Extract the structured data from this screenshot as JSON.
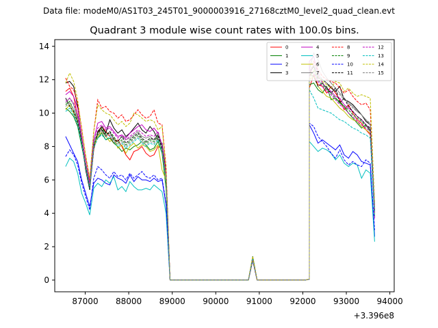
{
  "chart_data": {
    "type": "line",
    "suptitle": "Data file: modeM0/AS1T03_245T01_9000003916_27168cztM0_level2_quad_clean.evt",
    "title": "Quadrant 3 module wise count rates with 100.0s bins.",
    "xlabel": "",
    "ylabel": "",
    "x_offset_label": "+3.396e8",
    "xlim": [
      86300,
      94100
    ],
    "ylim": [
      -0.7,
      14.4
    ],
    "x_ticks": [
      87000,
      88000,
      89000,
      90000,
      91000,
      92000,
      93000,
      94000
    ],
    "x_tick_labels": [
      "87000",
      "88000",
      "89000",
      "90000",
      "91000",
      "92000",
      "93000",
      "94000"
    ],
    "y_ticks": [
      0,
      2,
      4,
      6,
      8,
      10,
      12,
      14
    ],
    "y_tick_labels": [
      "0",
      "2",
      "4",
      "6",
      "8",
      "10",
      "12",
      "14"
    ],
    "legend_position": "top-right",
    "segments": [
      {
        "start": 86550,
        "end": 88950
      },
      {
        "start": 88950,
        "end": 92150,
        "flat_value": 0,
        "spike_x": 90850,
        "spike_value": 1.3
      },
      {
        "start": 92150,
        "end": 93650
      }
    ],
    "series": [
      {
        "name": "0",
        "color": "#ff0000",
        "dash": "solid",
        "seg1": [
          11.3,
          11.5,
          11.0,
          9.8,
          8.2,
          6.6,
          5.5,
          7.8,
          8.8,
          9.2,
          8.9,
          8.6,
          8.2,
          8.4,
          8.0,
          7.5,
          7.2,
          7.7,
          7.8,
          8.0,
          7.6,
          7.4,
          7.5,
          8.0,
          7.9,
          6.0
        ],
        "seg3": [
          11.5,
          12.3,
          11.7,
          11.6,
          11.2,
          11.6,
          11.2,
          10.8,
          10.2,
          10.5,
          10.0,
          9.6,
          9.4,
          9.0,
          8.7,
          4.0
        ]
      },
      {
        "name": "1",
        "color": "#008000",
        "dash": "solid",
        "seg1": [
          10.3,
          10.1,
          9.8,
          9.2,
          8.0,
          6.8,
          5.7,
          8.2,
          8.5,
          8.8,
          8.4,
          8.5,
          8.2,
          8.0,
          7.7,
          7.9,
          7.8,
          8.0,
          8.1,
          8.3,
          8.1,
          7.8,
          7.9,
          8.3,
          7.6,
          5.5
        ],
        "seg3": [
          11.7,
          11.8,
          11.4,
          11.2,
          11.6,
          10.8,
          10.9,
          10.6,
          10.4,
          10.0,
          9.7,
          9.4,
          9.1,
          9.3,
          8.9,
          4.1
        ]
      },
      {
        "name": "2",
        "color": "#0000ff",
        "dash": "solid",
        "seg1": [
          8.6,
          8.1,
          7.6,
          7.1,
          6.0,
          5.2,
          4.4,
          5.8,
          6.1,
          6.0,
          5.8,
          5.7,
          6.3,
          6.1,
          6.0,
          5.8,
          6.3,
          5.9,
          6.2,
          6.0,
          6.0,
          5.9,
          6.1,
          5.9,
          6.0,
          4.5
        ],
        "seg3": [
          9.3,
          8.8,
          8.2,
          8.4,
          8.2,
          8.0,
          7.8,
          8.1,
          7.5,
          7.3,
          7.7,
          7.5,
          7.1,
          7.0,
          6.9,
          2.6
        ]
      },
      {
        "name": "3",
        "color": "#000000",
        "dash": "solid",
        "seg1": [
          11.8,
          11.9,
          11.6,
          10.4,
          8.4,
          6.6,
          5.4,
          7.9,
          8.9,
          9.2,
          8.8,
          9.6,
          9.1,
          8.8,
          9.0,
          8.6,
          8.8,
          9.1,
          9.4,
          9.0,
          8.8,
          9.2,
          8.9,
          8.4,
          8.2,
          6.5
        ],
        "seg3": [
          12.4,
          12.8,
          12.1,
          12.0,
          11.8,
          11.5,
          11.3,
          11.6,
          10.8,
          10.7,
          10.5,
          10.2,
          9.9,
          9.5,
          9.3,
          3.8
        ]
      },
      {
        "name": "4",
        "color": "#bf00bf",
        "dash": "solid",
        "seg1": [
          11.1,
          11.3,
          11.0,
          10.3,
          8.6,
          7.0,
          5.9,
          8.4,
          9.4,
          9.5,
          9.1,
          9.2,
          8.9,
          8.6,
          8.7,
          8.5,
          8.8,
          9.0,
          9.2,
          9.3,
          9.0,
          8.9,
          9.1,
          8.8,
          8.1,
          6.2
        ],
        "seg3": [
          13.1,
          13.4,
          12.3,
          11.8,
          11.5,
          11.3,
          11.0,
          10.9,
          10.5,
          10.3,
          10.1,
          9.8,
          9.6,
          9.3,
          9.0,
          3.7
        ]
      },
      {
        "name": "5",
        "color": "#00bfbf",
        "dash": "solid",
        "seg1": [
          6.8,
          7.3,
          7.1,
          6.4,
          5.2,
          4.6,
          3.9,
          5.5,
          5.8,
          5.6,
          6.0,
          5.8,
          6.2,
          5.4,
          5.6,
          5.3,
          5.9,
          5.6,
          5.4,
          5.4,
          5.5,
          5.4,
          5.7,
          5.5,
          5.3,
          4.0
        ],
        "seg3": [
          8.3,
          8.0,
          7.7,
          7.9,
          7.8,
          7.6,
          7.2,
          7.5,
          7.0,
          6.8,
          7.0,
          6.9,
          6.1,
          6.6,
          6.4,
          2.3
        ]
      },
      {
        "name": "6",
        "color": "#bfbf00",
        "dash": "solid",
        "seg1": [
          10.2,
          10.5,
          10.0,
          9.5,
          8.3,
          6.8,
          5.6,
          8.0,
          8.6,
          8.9,
          8.6,
          8.3,
          8.5,
          7.9,
          8.1,
          7.6,
          8.0,
          8.2,
          7.9,
          8.1,
          8.0,
          7.7,
          7.8,
          8.1,
          6.6,
          6.0
        ],
        "seg3": [
          12.0,
          12.2,
          11.6,
          11.3,
          11.0,
          10.9,
          10.6,
          10.3,
          10.1,
          9.8,
          9.6,
          9.5,
          9.2,
          9.0,
          8.8,
          3.9
        ]
      },
      {
        "name": "7",
        "color": "#808080",
        "dash": "solid",
        "seg1": [
          10.6,
          10.9,
          10.5,
          9.7,
          8.2,
          6.9,
          5.8,
          8.3,
          8.8,
          9.0,
          8.7,
          8.8,
          8.5,
          8.3,
          8.6,
          8.4,
          8.5,
          8.7,
          8.9,
          8.6,
          8.5,
          8.6,
          8.4,
          8.8,
          8.0,
          6.3
        ],
        "seg3": [
          12.6,
          13.6,
          13.2,
          12.5,
          12.1,
          11.8,
          11.5,
          11.2,
          10.9,
          10.6,
          10.4,
          10.1,
          9.9,
          9.6,
          9.3,
          4.2
        ]
      },
      {
        "name": "8",
        "color": "#ff0000",
        "dash": "dashed",
        "seg1": [
          12.1,
          11.6,
          11.4,
          10.6,
          9.1,
          7.4,
          6.0,
          8.9,
          10.8,
          10.3,
          10.4,
          10.1,
          10.0,
          9.7,
          9.9,
          9.5,
          9.6,
          9.9,
          10.2,
          9.9,
          9.7,
          9.8,
          10.2,
          9.4,
          9.3,
          6.8
        ],
        "seg3": [
          12.1,
          13.1,
          12.6,
          12.2,
          12.0,
          11.9,
          11.8,
          11.5,
          11.2,
          11.4,
          11.0,
          10.7,
          10.5,
          10.6,
          10.2,
          4.5
        ]
      },
      {
        "name": "9",
        "color": "#008000",
        "dash": "dashed",
        "seg1": [
          10.5,
          10.7,
          10.2,
          9.6,
          8.4,
          6.9,
          5.7,
          8.1,
          8.7,
          9.1,
          8.7,
          8.9,
          8.6,
          8.2,
          8.4,
          8.1,
          8.3,
          8.5,
          8.7,
          8.4,
          8.2,
          8.4,
          8.3,
          8.6,
          7.8,
          6.1
        ],
        "seg3": [
          12.2,
          12.5,
          12.0,
          11.7,
          11.4,
          11.2,
          10.9,
          10.7,
          10.4,
          10.2,
          9.9,
          9.7,
          9.5,
          9.2,
          9.0,
          4.0
        ]
      },
      {
        "name": "10",
        "color": "#0000ff",
        "dash": "dashed",
        "seg1": [
          7.4,
          7.8,
          7.5,
          6.9,
          5.8,
          5.0,
          4.2,
          6.1,
          6.8,
          6.6,
          6.3,
          6.1,
          6.5,
          6.2,
          6.3,
          6.0,
          6.4,
          6.1,
          6.3,
          6.5,
          6.2,
          6.1,
          6.3,
          6.0,
          6.1,
          4.6
        ],
        "seg3": [
          9.4,
          9.2,
          8.6,
          8.3,
          8.0,
          7.6,
          7.3,
          7.8,
          7.2,
          6.9,
          7.1,
          6.9,
          6.8,
          7.2,
          7.0,
          3.0
        ]
      },
      {
        "name": "11",
        "color": "#000000",
        "dash": "dashed",
        "seg1": [
          10.9,
          10.4,
          10.1,
          9.4,
          8.2,
          6.7,
          5.6,
          8.0,
          8.9,
          9.0,
          8.6,
          8.9,
          8.4,
          8.3,
          8.6,
          8.2,
          8.4,
          8.6,
          8.8,
          8.5,
          8.3,
          8.5,
          8.4,
          8.7,
          7.9,
          6.2
        ],
        "seg3": [
          12.3,
          12.2,
          11.6,
          11.8,
          11.5,
          11.2,
          11.5,
          10.6,
          10.9,
          10.4,
          10.1,
          9.8,
          9.6,
          9.3,
          9.1,
          4.1
        ]
      },
      {
        "name": "12",
        "color": "#bf00bf",
        "dash": "dashed",
        "seg1": [
          10.7,
          10.9,
          10.6,
          9.9,
          8.6,
          7.1,
          5.8,
          8.4,
          9.1,
          9.3,
          9.0,
          9.1,
          8.8,
          8.5,
          8.7,
          8.4,
          8.6,
          8.8,
          9.0,
          8.8,
          8.6,
          8.7,
          8.6,
          8.9,
          8.1,
          6.3
        ],
        "seg3": [
          12.7,
          12.4,
          11.9,
          11.6,
          11.3,
          11.1,
          10.8,
          10.5,
          10.3,
          10.0,
          9.8,
          9.5,
          9.3,
          9.1,
          8.9,
          4.0
        ]
      },
      {
        "name": "13",
        "color": "#00bfbf",
        "dash": "dashed",
        "seg1": [
          10.1,
          10.3,
          9.9,
          9.3,
          8.1,
          6.7,
          5.5,
          7.9,
          8.5,
          8.7,
          8.4,
          8.6,
          8.3,
          8.0,
          8.2,
          7.9,
          8.1,
          8.3,
          8.5,
          8.2,
          8.0,
          8.2,
          8.1,
          8.4,
          7.7,
          6.0
        ],
        "seg3": [
          11.4,
          10.9,
          10.3,
          10.2,
          10.1,
          10.0,
          9.8,
          9.6,
          9.5,
          9.3,
          9.1,
          9.0,
          8.8,
          8.7,
          8.5,
          3.8
        ]
      },
      {
        "name": "14",
        "color": "#bfbf00",
        "dash": "dashed",
        "seg1": [
          11.8,
          12.4,
          11.9,
          10.8,
          9.0,
          7.5,
          6.1,
          8.9,
          10.5,
          10.2,
          10.0,
          9.9,
          9.6,
          9.3,
          9.5,
          9.2,
          9.4,
          10.0,
          9.9,
          9.7,
          9.5,
          9.6,
          9.5,
          9.0,
          9.2,
          6.6
        ],
        "seg3": [
          12.0,
          12.6,
          12.2,
          11.9,
          11.7,
          11.5,
          11.9,
          11.8,
          11.3,
          11.5,
          11.2,
          11.0,
          11.1,
          11.0,
          10.9,
          4.6
        ]
      },
      {
        "name": "15",
        "color": "#808080",
        "dash": "dashed",
        "seg1": [
          10.4,
          10.6,
          10.2,
          9.6,
          8.3,
          6.8,
          5.6,
          8.1,
          8.7,
          8.9,
          8.6,
          8.7,
          8.4,
          8.1,
          8.3,
          8.0,
          8.2,
          8.4,
          8.6,
          8.3,
          8.1,
          8.3,
          8.2,
          8.5,
          7.8,
          6.1
        ],
        "seg3": [
          12.5,
          12.9,
          12.4,
          12.0,
          11.8,
          11.6,
          11.3,
          11.1,
          10.8,
          10.6,
          10.3,
          10.1,
          9.9,
          9.6,
          9.4,
          4.3
        ]
      }
    ]
  }
}
